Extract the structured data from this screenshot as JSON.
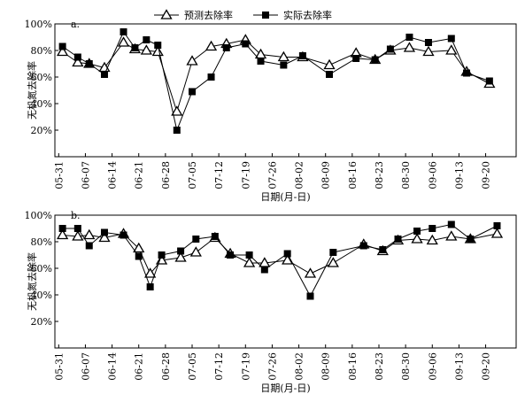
{
  "chart_data": [
    {
      "type": "line",
      "panel_label": "a.",
      "xlabel": "日期(月-日)",
      "ylabel": "无机氮去除率",
      "legend": "top",
      "x": [
        "06-01",
        "06-05",
        "06-08",
        "06-12",
        "06-17",
        "06-20",
        "06-23",
        "06-26",
        "07-01",
        "07-05",
        "07-10",
        "07-14",
        "07-19",
        "07-23",
        "07-29",
        "08-03",
        "08-10",
        "08-17",
        "08-22",
        "08-26",
        "08-31",
        "09-05",
        "09-11",
        "09-15",
        "09-21"
      ],
      "series": [
        {
          "name": "预测去除率",
          "color": "#000000",
          "marker": "triangle",
          "values": [
            79,
            71,
            70,
            67,
            86,
            81,
            80,
            79,
            34,
            72,
            83,
            85,
            88,
            77,
            75,
            75,
            69,
            78,
            73,
            80,
            82,
            79,
            80,
            64,
            55
          ]
        },
        {
          "name": "实际去除率",
          "color": "#000000",
          "marker": "square",
          "values": [
            83,
            75,
            70,
            62,
            94,
            82,
            88,
            84,
            20,
            49,
            60,
            82,
            85,
            72,
            69,
            76,
            62,
            74,
            73,
            81,
            90,
            86,
            89,
            63,
            57
          ]
        }
      ],
      "xlim": [
        "05-30",
        "09-28"
      ],
      "xticks": [
        "05-31",
        "06-07",
        "06-14",
        "06-21",
        "06-28",
        "07-05",
        "07-12",
        "07-19",
        "07-26",
        "08-02",
        "08-09",
        "08-16",
        "08-23",
        "08-30",
        "09-06",
        "09-13",
        "09-20"
      ],
      "ylim": [
        0,
        100
      ],
      "yticks": [
        {
          "value": 20,
          "label": "20%"
        },
        {
          "value": 40,
          "label": "40%"
        },
        {
          "value": 60,
          "label": "60%"
        },
        {
          "value": 80,
          "label": "80%"
        },
        {
          "value": 100,
          "label": "100%"
        }
      ]
    },
    {
      "type": "line",
      "panel_label": "b.",
      "xlabel": "日期(月-日)",
      "ylabel": "无机氮去除率",
      "x": [
        "06-01",
        "06-05",
        "06-08",
        "06-12",
        "06-17",
        "06-21",
        "06-24",
        "06-27",
        "07-02",
        "07-06",
        "07-11",
        "07-15",
        "07-20",
        "07-24",
        "07-30",
        "08-05",
        "08-11",
        "08-19",
        "08-24",
        "08-28",
        "09-02",
        "09-06",
        "09-11",
        "09-16",
        "09-23"
      ],
      "series": [
        {
          "name": "预测去除率",
          "color": "#000000",
          "marker": "triangle",
          "values": [
            85,
            84,
            85,
            83,
            86,
            75,
            56,
            66,
            68,
            72,
            83,
            71,
            64,
            64,
            66,
            56,
            64,
            78,
            73,
            81,
            82,
            81,
            84,
            82,
            86
          ]
        },
        {
          "name": "实际去除率",
          "color": "#000000",
          "marker": "square",
          "values": [
            90,
            90,
            77,
            87,
            85,
            69,
            46,
            70,
            73,
            82,
            84,
            70,
            70,
            59,
            71,
            39,
            72,
            77,
            74,
            82,
            88,
            90,
            93,
            82,
            92
          ]
        }
      ],
      "xlim": [
        "05-30",
        "09-28"
      ],
      "xticks": [
        "05-31",
        "06-07",
        "06-14",
        "06-21",
        "06-28",
        "07-05",
        "07-12",
        "07-19",
        "07-26",
        "08-02",
        "08-09",
        "08-16",
        "08-23",
        "08-30",
        "09-06",
        "09-13",
        "09-20"
      ],
      "ylim": [
        0,
        100
      ],
      "yticks": [
        {
          "value": 20,
          "label": "20%"
        },
        {
          "value": 40,
          "label": "40%"
        },
        {
          "value": 60,
          "label": "60%"
        },
        {
          "value": 80,
          "label": "80%"
        },
        {
          "value": 100,
          "label": "100%"
        }
      ]
    }
  ]
}
